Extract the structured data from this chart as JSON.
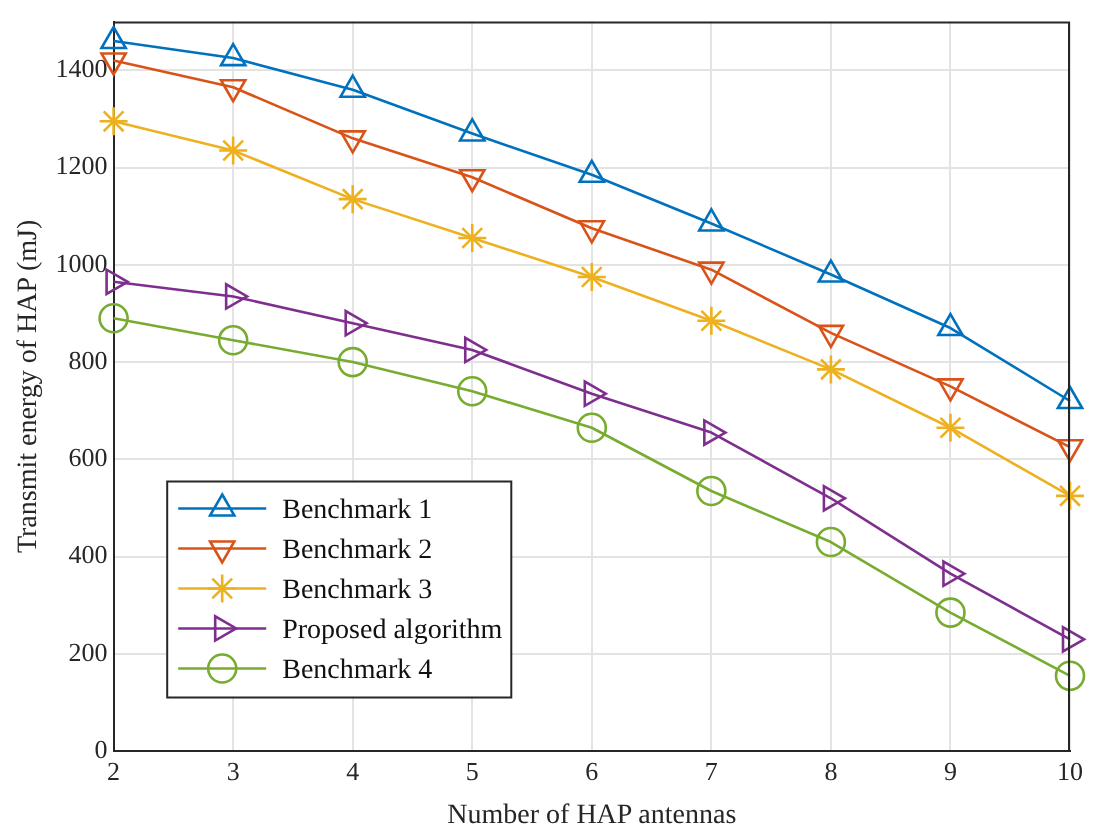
{
  "chart_data": {
    "type": "line",
    "xlabel": "Number of HAP antennas",
    "ylabel": "Transmit energy of HAP (mJ)",
    "x": [
      2,
      3,
      4,
      5,
      6,
      7,
      8,
      9,
      10
    ],
    "xlim": [
      2,
      10
    ],
    "xticks": [
      2,
      3,
      4,
      5,
      6,
      7,
      8,
      9,
      10
    ],
    "ylim": [
      0,
      1500
    ],
    "yticks": [
      0,
      200,
      400,
      600,
      800,
      1000,
      1200,
      1400
    ],
    "grid": true,
    "legend": "bottom left",
    "line_style": "solid",
    "series": [
      {
        "name": "Benchmark 1",
        "color": "#0072bd",
        "marker": "triangle",
        "values": [
          1460,
          1425,
          1360,
          1270,
          1185,
          1085,
          980,
          870,
          720
        ]
      },
      {
        "name": "Benchmark 2",
        "color": "#d95319",
        "marker": "triangle-down",
        "values": [
          1420,
          1365,
          1260,
          1180,
          1075,
          990,
          860,
          750,
          625
        ]
      },
      {
        "name": "Benchmark 3",
        "color": "#edb120",
        "marker": "cross",
        "values": [
          1295,
          1235,
          1135,
          1055,
          975,
          885,
          785,
          665,
          525
        ]
      },
      {
        "name": "Proposed algorithm",
        "color": "#7e2f8e",
        "marker": "triangle-right",
        "values": [
          965,
          935,
          880,
          825,
          735,
          655,
          520,
          365,
          230
        ]
      },
      {
        "name": "Benchmark 4",
        "color": "#77ac30",
        "marker": "circle",
        "values": [
          890,
          845,
          800,
          740,
          665,
          535,
          430,
          285,
          155
        ]
      }
    ]
  }
}
